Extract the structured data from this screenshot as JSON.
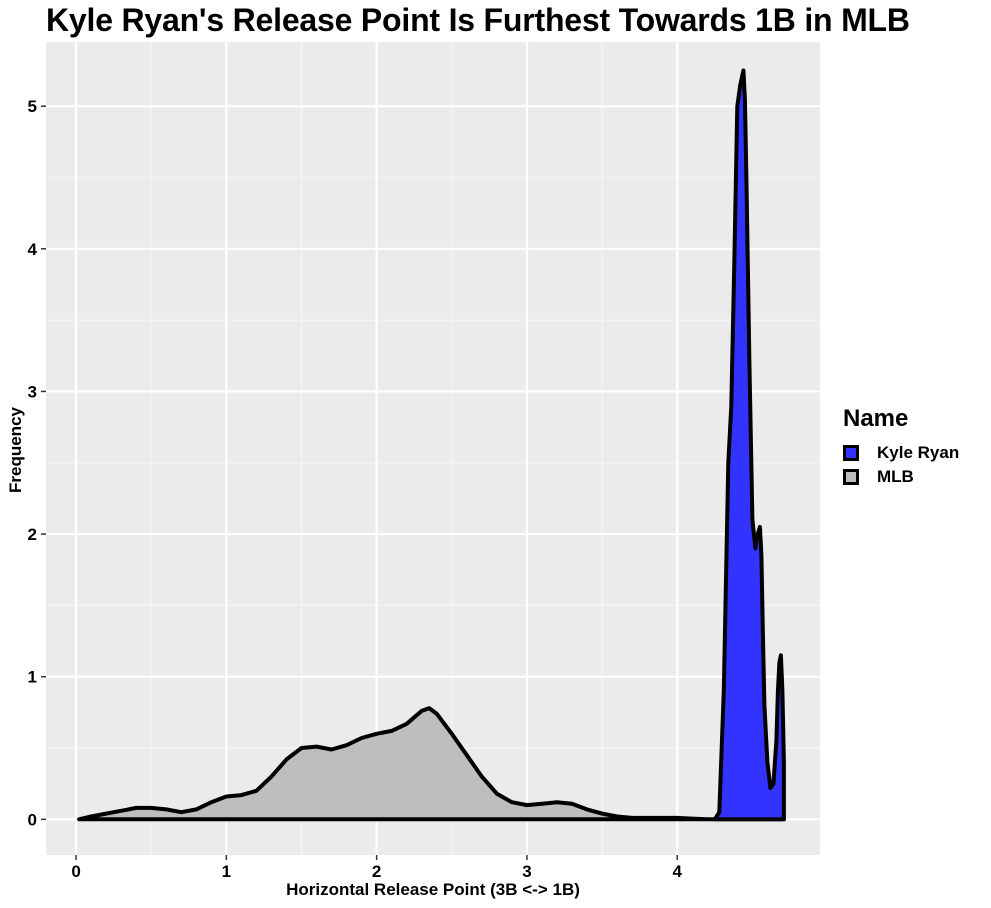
{
  "chart_data": {
    "type": "area",
    "title": "Kyle Ryan's Release Point Is Furthest Towards 1B in MLB",
    "xlabel": "Horizontal Release Point (3B <-> 1B)",
    "ylabel": "Frequency",
    "xlim": [
      -0.2,
      4.95
    ],
    "ylim": [
      -0.25,
      5.45
    ],
    "x_ticks": [
      0,
      1,
      2,
      3,
      4
    ],
    "y_ticks": [
      0,
      1,
      2,
      3,
      4,
      5
    ],
    "grid": true,
    "legend": {
      "title": "Name",
      "position": "right",
      "items": [
        "Kyle Ryan",
        "MLB"
      ]
    },
    "series": [
      {
        "name": "MLB",
        "color": "#bebebe",
        "x": [
          0.02,
          0.1,
          0.2,
          0.3,
          0.4,
          0.5,
          0.6,
          0.7,
          0.8,
          0.9,
          1.0,
          1.1,
          1.2,
          1.3,
          1.4,
          1.5,
          1.6,
          1.7,
          1.8,
          1.9,
          2.0,
          2.1,
          2.2,
          2.3,
          2.35,
          2.4,
          2.5,
          2.6,
          2.7,
          2.8,
          2.9,
          3.0,
          3.1,
          3.2,
          3.3,
          3.4,
          3.5,
          3.6,
          3.7,
          3.8,
          3.9,
          4.0,
          4.1,
          4.2,
          4.3,
          4.4,
          4.5,
          4.6,
          4.71
        ],
        "y": [
          0.0,
          0.02,
          0.04,
          0.06,
          0.08,
          0.08,
          0.07,
          0.05,
          0.07,
          0.12,
          0.16,
          0.17,
          0.2,
          0.3,
          0.42,
          0.5,
          0.51,
          0.49,
          0.52,
          0.57,
          0.6,
          0.62,
          0.67,
          0.76,
          0.78,
          0.74,
          0.6,
          0.45,
          0.3,
          0.18,
          0.12,
          0.1,
          0.11,
          0.12,
          0.11,
          0.07,
          0.04,
          0.02,
          0.01,
          0.01,
          0.01,
          0.01,
          0.005,
          0.0,
          0.0,
          0.0,
          0.0,
          0.0,
          0.0
        ]
      },
      {
        "name": "Kyle Ryan",
        "color": "#3333ff",
        "x": [
          4.25,
          4.28,
          4.31,
          4.34,
          4.36,
          4.38,
          4.4,
          4.42,
          4.44,
          4.45,
          4.46,
          4.48,
          4.5,
          4.52,
          4.53,
          4.55,
          4.56,
          4.57,
          4.58,
          4.6,
          4.62,
          4.64,
          4.66,
          4.67,
          4.68,
          4.69,
          4.7,
          4.71,
          4.71
        ],
        "y": [
          0.0,
          0.05,
          0.9,
          2.5,
          2.9,
          3.9,
          5.0,
          5.15,
          5.25,
          5.05,
          4.5,
          3.2,
          2.1,
          1.9,
          1.98,
          2.05,
          1.85,
          1.3,
          0.8,
          0.4,
          0.22,
          0.25,
          0.55,
          0.9,
          1.1,
          1.15,
          0.9,
          0.4,
          0.0
        ]
      }
    ]
  }
}
